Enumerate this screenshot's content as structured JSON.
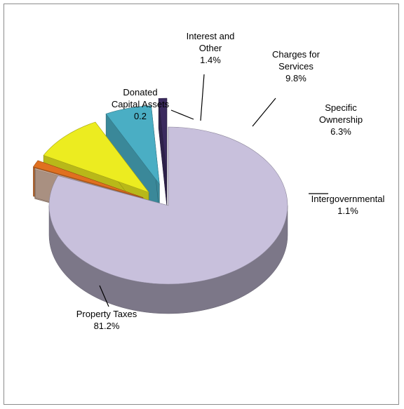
{
  "chart_data": {
    "type": "pie",
    "title": "",
    "slices": [
      {
        "label": [
          "Property Taxes",
          "81.2%"
        ],
        "value": 81.2,
        "color": "#c8c0dc"
      },
      {
        "label": [
          "Donated",
          "Capital Assets",
          "0.2"
        ],
        "value": 0.2,
        "color": "#d9b9a6"
      },
      {
        "label": [
          "Interest and",
          "Other",
          "1.4%"
        ],
        "value": 1.4,
        "color": "#e07020"
      },
      {
        "label": [
          "Charges for",
          "Services",
          "9.8%"
        ],
        "value": 9.8,
        "color": "#ecec20"
      },
      {
        "label": [
          "Specific",
          "Ownership",
          "6.3%"
        ],
        "value": 6.3,
        "color": "#4aaec4"
      },
      {
        "label": [
          "Intergovernmental",
          "1.1%"
        ],
        "value": 1.1,
        "color": "#3b2a5e"
      }
    ]
  }
}
